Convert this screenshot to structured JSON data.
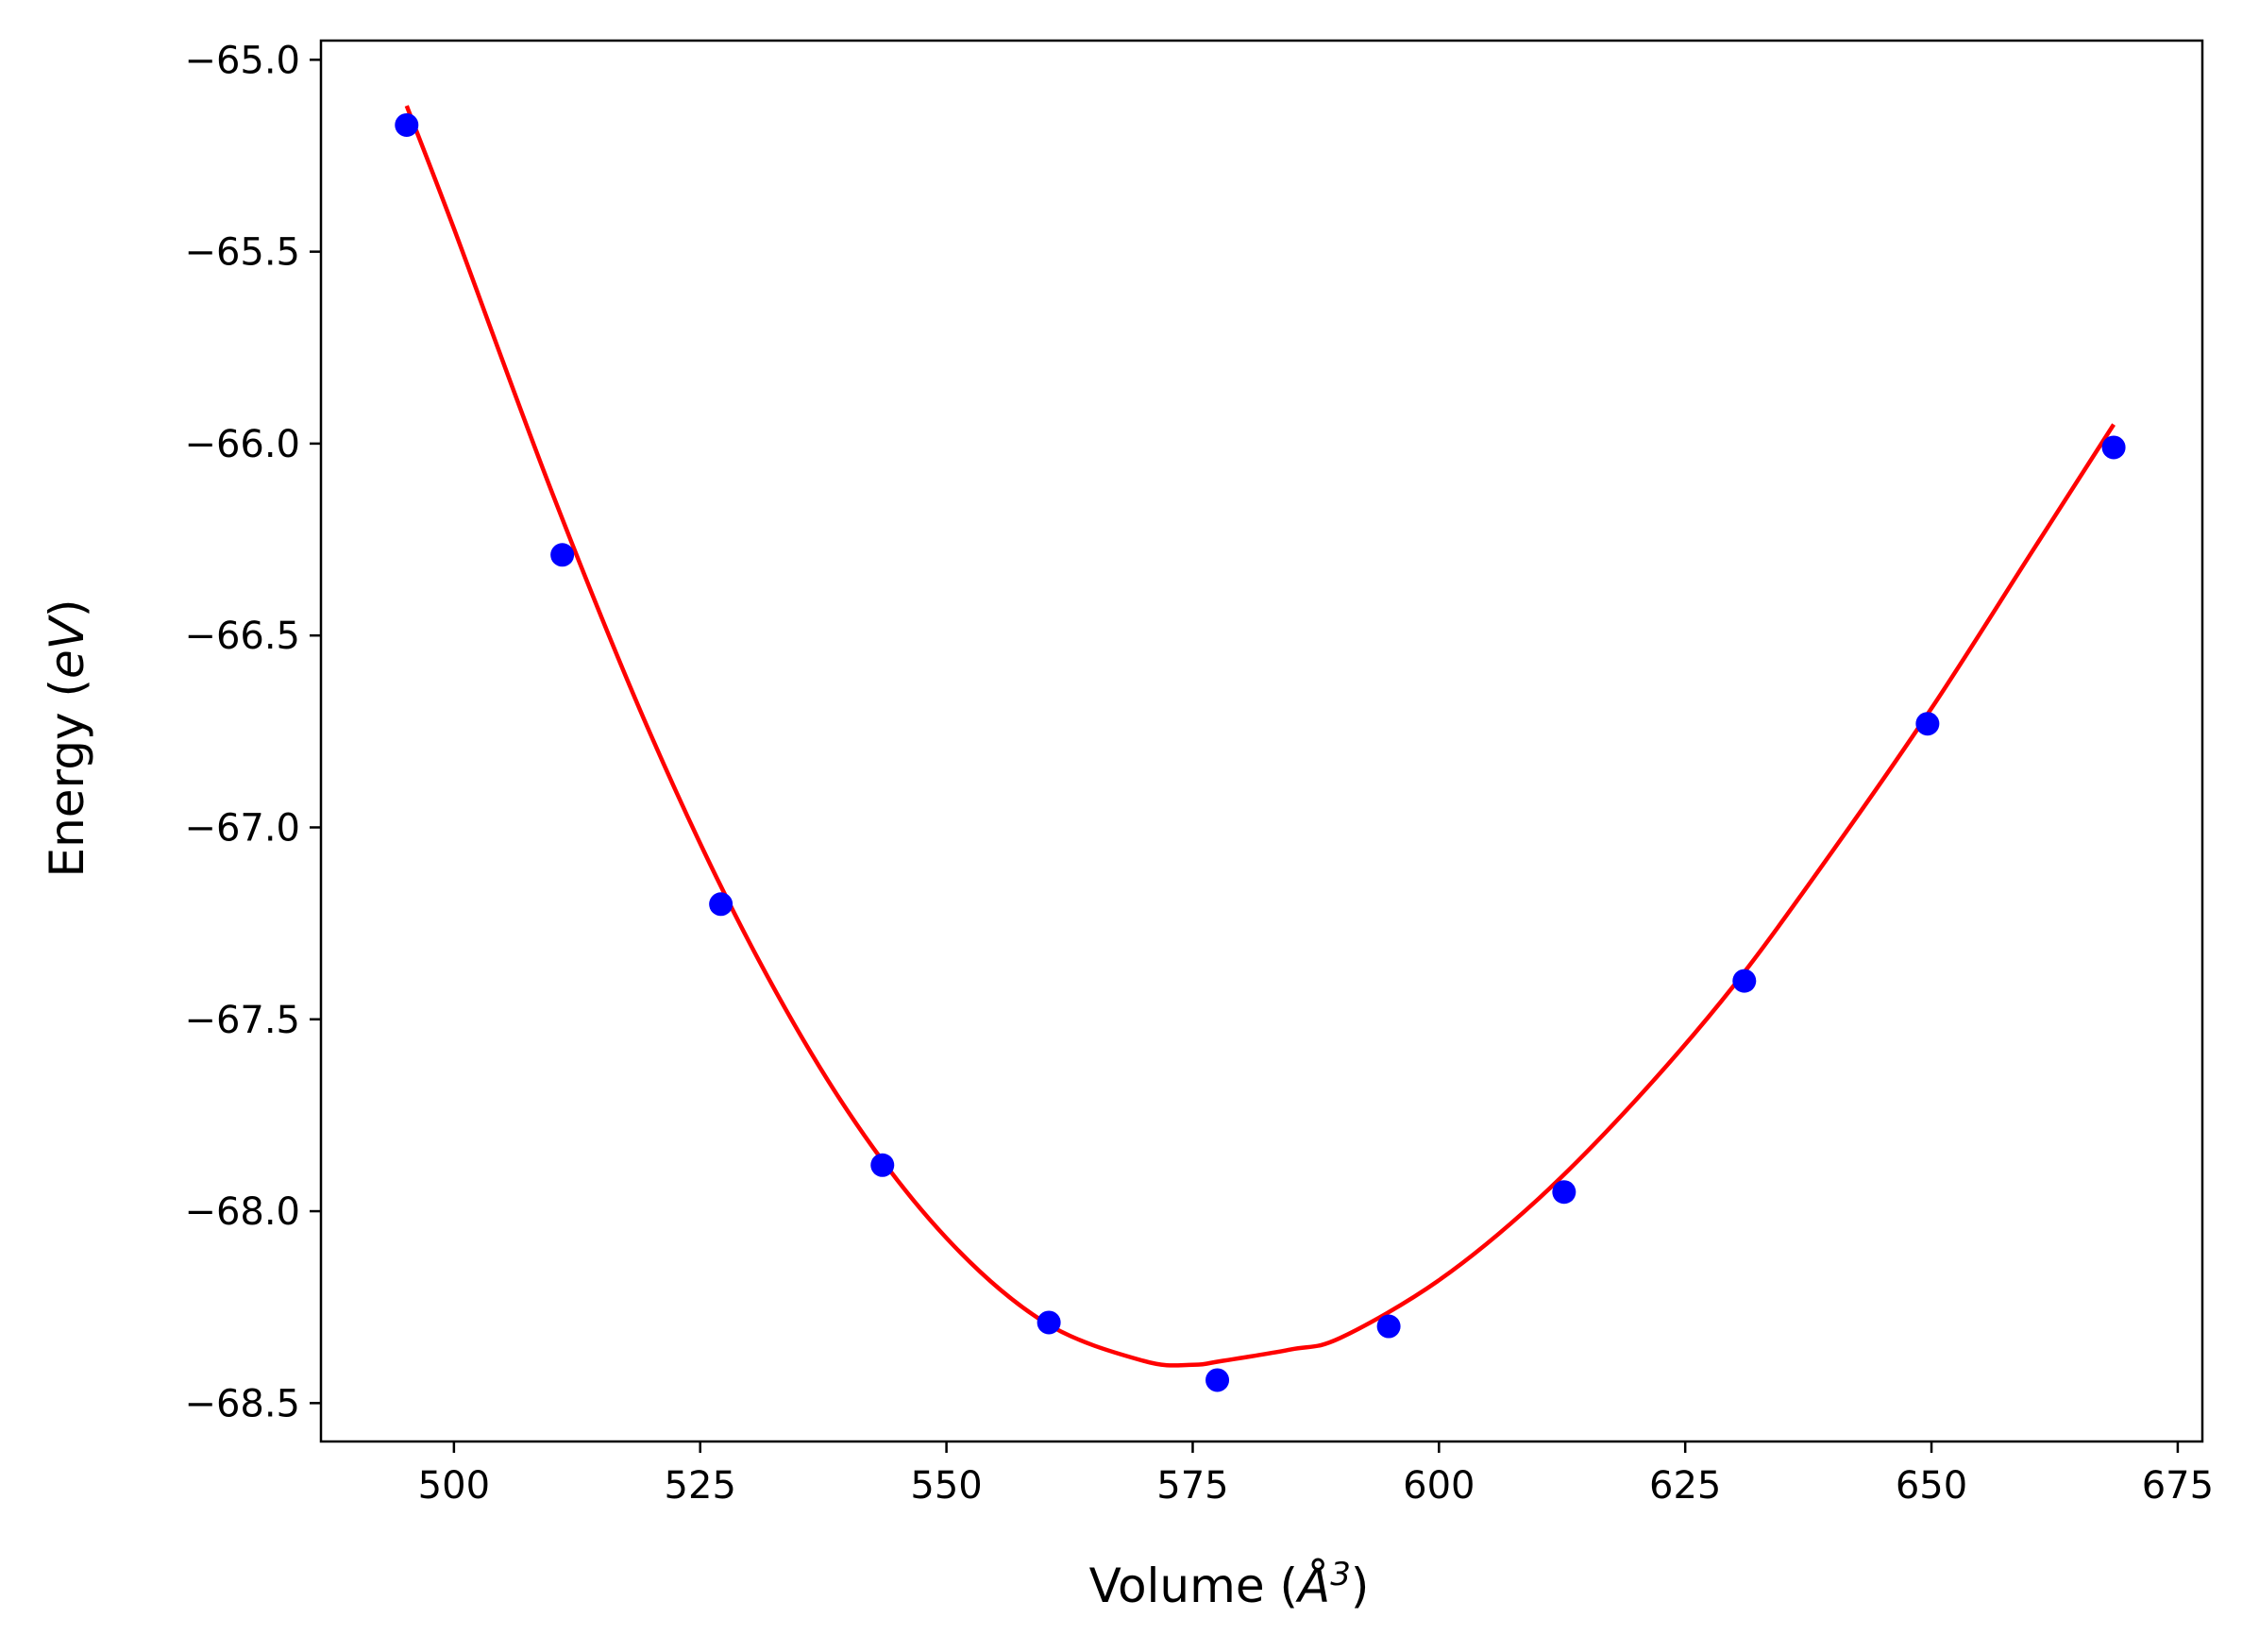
{
  "chart_data": {
    "type": "scatter",
    "xlabel_parts": {
      "prefix": "Volume (",
      "symbol": "Å",
      "exp": "3",
      "suffix": ")"
    },
    "ylabel_parts": {
      "prefix": "Energy (",
      "symbol": "eV",
      "suffix": ")"
    },
    "xlim": [
      486.5,
      677.5
    ],
    "ylim": [
      -68.6,
      -64.95
    ],
    "x_ticks": [
      500,
      525,
      550,
      575,
      600,
      625,
      650,
      675
    ],
    "x_tick_labels": [
      "500",
      "525",
      "550",
      "575",
      "600",
      "625",
      "650",
      "675"
    ],
    "y_ticks": [
      -65.0,
      -65.5,
      -66.0,
      -66.5,
      -67.0,
      -67.5,
      -68.0,
      -68.5
    ],
    "y_tick_labels": [
      "−65.0",
      "−65.5",
      "−66.0",
      "−66.5",
      "−67.0",
      "−67.5",
      "−68.0",
      "−68.5"
    ],
    "grid": false,
    "series": [
      {
        "kind": "points",
        "color": "#0000ff",
        "x": [
          495.2,
          511.0,
          527.1,
          543.5,
          560.4,
          577.5,
          594.9,
          612.7,
          631.0,
          649.6,
          668.5
        ],
        "y": [
          -65.17,
          -66.29,
          -67.2,
          -67.88,
          -68.29,
          -68.44,
          -68.3,
          -67.95,
          -67.4,
          -66.73,
          -66.01
        ]
      },
      {
        "kind": "fit-line",
        "color": "#ff0000",
        "x": [
          495.2,
          500,
          510,
          520,
          530,
          540,
          550,
          560,
          570,
          575,
          578,
          585,
          590,
          600,
          610,
          620,
          630,
          640,
          650,
          660,
          668.5
        ],
        "y": [
          -65.12,
          -65.44,
          -66.13,
          -66.76,
          -67.3,
          -67.74,
          -68.07,
          -68.29,
          -68.39,
          -68.4,
          -68.39,
          -68.36,
          -68.33,
          -68.18,
          -67.97,
          -67.71,
          -67.41,
          -67.06,
          -66.69,
          -66.29,
          -65.95
        ]
      }
    ]
  }
}
